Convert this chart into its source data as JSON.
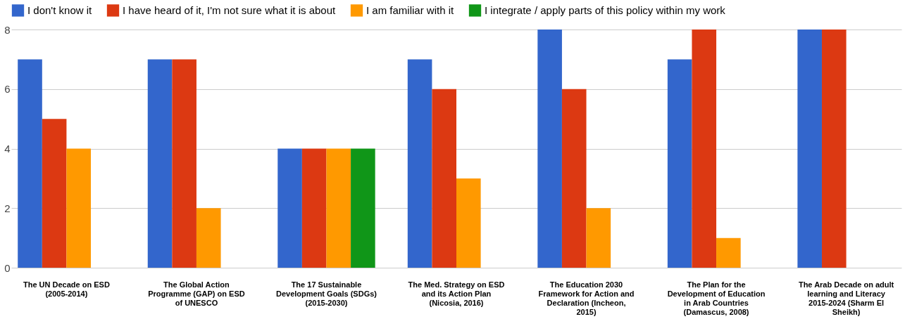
{
  "chart_data": {
    "type": "bar",
    "categories": [
      "The UN Decade on ESD (2005-2014)",
      "The Global Action Programme (GAP) on ESD of UNESCO",
      "The 17 Sustainable Development Goals (SDGs) (2015-2030)",
      "The Med. Strategy on ESD and its Action Plan (Nicosia, 2016)",
      "The Education 2030 Framework for Action and Declaration (Incheon, 2015)",
      "The Plan for the Development of Education in Arab Countries (Damascus, 2008)",
      "The Arab Decade on adult learning and Literacy 2015-2024 (Sharm El Sheikh)"
    ],
    "series": [
      {
        "name": "I don't know it",
        "color": "#3366cc",
        "values": [
          7,
          7,
          4,
          7,
          8,
          7,
          8
        ]
      },
      {
        "name": "I have heard of it, I'm not sure what it is about",
        "color": "#dc3912",
        "values": [
          5,
          7,
          4,
          6,
          6,
          8,
          8
        ]
      },
      {
        "name": "I am familiar with it",
        "color": "#ff9900",
        "values": [
          4,
          2,
          4,
          3,
          2,
          1,
          0
        ]
      },
      {
        "name": "I integrate / apply parts of this policy within my work",
        "color": "#109618",
        "values": [
          0,
          0,
          4,
          0,
          0,
          0,
          0
        ]
      }
    ],
    "ylim": [
      0,
      8
    ],
    "yticks": [
      0,
      2,
      4,
      6,
      8
    ],
    "grid": "y",
    "legend": "top"
  }
}
